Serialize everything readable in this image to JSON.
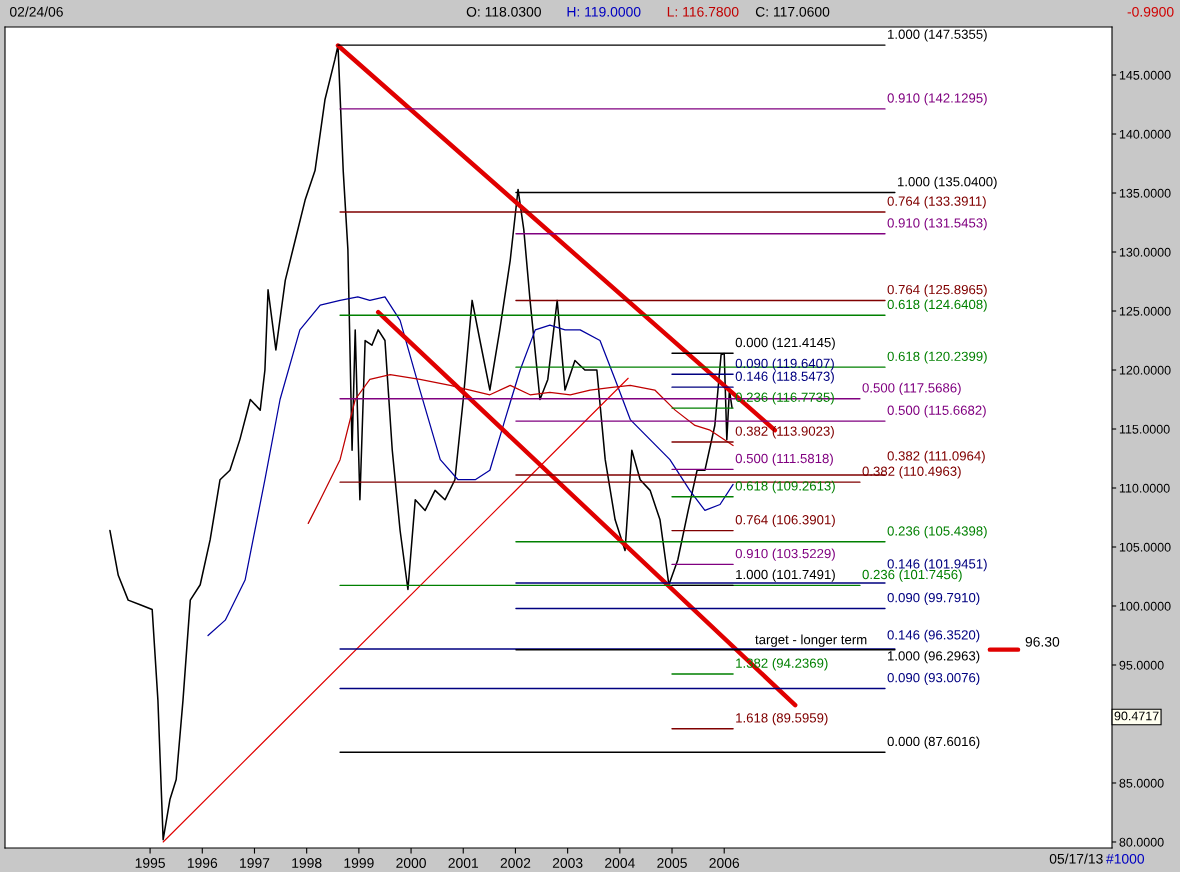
{
  "chart_data": {
    "type": "line",
    "xlim": [
      1992.22,
      2013.43
    ],
    "ylim": [
      79.49,
      149.07
    ],
    "xticks": [
      1995,
      1996,
      1997,
      1998,
      1999,
      2000,
      2001,
      2002,
      2003,
      2004,
      2005,
      2006
    ],
    "yticks": [
      {
        "value": 80,
        "label": "80.0000"
      },
      {
        "value": 85,
        "label": "85.0000"
      },
      {
        "value": 90,
        "label": null
      },
      {
        "value": 95,
        "label": "95.0000"
      },
      {
        "value": 100,
        "label": "100.0000"
      },
      {
        "value": 105,
        "label": "105.0000"
      },
      {
        "value": 110,
        "label": "110.0000"
      },
      {
        "value": 115,
        "label": "115.0000"
      },
      {
        "value": 120,
        "label": "120.0000"
      },
      {
        "value": 125,
        "label": "125.0000"
      },
      {
        "value": 130,
        "label": "130.0000"
      },
      {
        "value": 135,
        "label": "135.0000"
      },
      {
        "value": 140,
        "label": "140.0000"
      },
      {
        "value": 145,
        "label": "145.0000"
      }
    ],
    "grid": false,
    "series": [
      {
        "color": "#000000",
        "x": [
          1994.23,
          1994.39,
          1994.58,
          1994.81,
          1995.04,
          1995.15,
          1995.25,
          1995.38,
          1995.5,
          1995.63,
          1995.77,
          1995.96,
          1996.15,
          1996.34,
          1996.53,
          1996.72,
          1996.92,
          1997.11,
          1997.2,
          1997.26,
          1997.41,
          1997.59,
          1997.78,
          1997.97,
          1998.16,
          1998.35,
          1998.54,
          1998.6,
          1998.7,
          1998.79,
          1998.87,
          1998.93,
          1999.02,
          1999.12,
          1999.25,
          1999.37,
          1999.5,
          1999.64,
          1999.79,
          1999.94,
          2000.08,
          2000.27,
          2000.46,
          2000.65,
          2000.84,
          2001.0,
          2001.17,
          2001.32,
          2001.51,
          2001.7,
          2001.9,
          2002.05,
          2002.16,
          2002.28,
          2002.47,
          2002.62,
          2002.8,
          2002.95,
          2003.14,
          2003.33,
          2003.56,
          2003.72,
          2003.91,
          2004.1,
          2004.23,
          2004.39,
          2004.58,
          2004.77,
          2004.94,
          2005.11,
          2005.31,
          2005.48,
          2005.63,
          2005.82,
          2005.94,
          2006.0,
          2006.05,
          2006.1,
          2006.15
        ],
        "values": [
          106.4,
          102.6,
          100.5,
          100.1,
          99.7,
          92.0,
          80.2,
          83.6,
          85.3,
          92.0,
          100.5,
          101.8,
          105.6,
          110.7,
          111.5,
          114.1,
          117.5,
          116.6,
          120.0,
          126.8,
          121.7,
          127.6,
          131.0,
          134.4,
          136.9,
          142.9,
          146.3,
          147.5,
          136.9,
          130.2,
          113.2,
          123.4,
          109.0,
          122.5,
          122.1,
          123.4,
          122.5,
          113.2,
          106.4,
          101.4,
          109.0,
          108.1,
          109.8,
          109.0,
          110.7,
          117.5,
          125.9,
          122.5,
          118.3,
          123.4,
          129.3,
          135.3,
          131.9,
          125.9,
          117.5,
          119.2,
          125.9,
          118.3,
          120.8,
          120.0,
          120.0,
          112.4,
          107.3,
          104.7,
          113.2,
          110.7,
          109.8,
          107.3,
          101.8,
          103.9,
          108.1,
          111.5,
          111.5,
          115.3,
          121.3,
          121.4,
          114.1,
          118.3,
          116.8
        ]
      },
      {
        "color": "#0000a0",
        "x": [
          1996.11,
          1996.44,
          1996.82,
          1997.2,
          1997.49,
          1997.87,
          1998.26,
          1998.64,
          1998.98,
          1999.21,
          1999.5,
          1999.79,
          2000.17,
          2000.56,
          2000.9,
          2001.23,
          2001.51,
          2001.8,
          2002.09,
          2002.38,
          2002.66,
          2002.95,
          2003.24,
          2003.62,
          2003.91,
          2004.2,
          2004.58,
          2004.96,
          2005.34,
          2005.63,
          2005.92,
          2006.17
        ],
        "values": [
          97.5,
          98.8,
          102.2,
          110.7,
          117.5,
          123.4,
          125.5,
          125.9,
          126.2,
          125.9,
          126.2,
          124.2,
          118.3,
          112.4,
          110.7,
          110.7,
          111.5,
          115.8,
          120.0,
          123.4,
          123.8,
          123.4,
          123.4,
          122.5,
          119.2,
          115.8,
          114.1,
          112.4,
          109.8,
          108.1,
          108.6,
          110.3
        ]
      },
      {
        "color": "#c00000",
        "x": [
          1998.03,
          1998.26,
          1998.64,
          1998.93,
          1999.21,
          1999.6,
          2000.17,
          2000.75,
          2001.13,
          2001.51,
          2001.9,
          2002.28,
          2002.66,
          2003.05,
          2003.43,
          2003.81,
          2004.2,
          2004.67,
          2005.06,
          2005.44,
          2005.73,
          2006.17
        ],
        "values": [
          107.0,
          109.0,
          112.4,
          117.5,
          119.2,
          119.6,
          119.2,
          118.7,
          118.3,
          117.9,
          118.7,
          117.9,
          118.1,
          117.9,
          118.3,
          118.5,
          118.7,
          118.3,
          116.6,
          115.3,
          114.9,
          113.6
        ]
      },
      {
        "color": "#e00000",
        "x": [
          1995.25,
          2004.16
        ],
        "values": [
          80.0,
          119.3
        ]
      },
      {
        "color": "#e00000",
        "x": [
          1998.6,
          2006.97
        ],
        "values": [
          147.5,
          114.9
        ]
      },
      {
        "color": "#e00000",
        "x": [
          1999.37,
          2007.36
        ],
        "values": [
          124.9,
          91.6
        ]
      },
      {
        "color": "#e00000",
        "x": [
          2011.09,
          2011.63
        ],
        "values": [
          96.3,
          96.3
        ]
      },
      {
        "color": "#000000",
        "x": [
          1998.6,
          2009.08
        ],
        "values": [
          147.5355,
          147.5355
        ]
      },
      {
        "color": "#800080",
        "x": [
          1998.64,
          2009.08
        ],
        "values": [
          142.1295,
          142.1295
        ]
      },
      {
        "color": "#800000",
        "x": [
          1998.64,
          2009.08
        ],
        "values": [
          133.3911,
          133.3911
        ]
      },
      {
        "color": "#008000",
        "x": [
          1998.64,
          2009.08
        ],
        "values": [
          124.6408,
          124.6408
        ]
      },
      {
        "color": "#800080",
        "x": [
          1998.64,
          2008.6
        ],
        "values": [
          117.5686,
          117.5686
        ]
      },
      {
        "color": "#800000",
        "x": [
          1998.64,
          2008.6
        ],
        "values": [
          110.4963,
          110.4963
        ]
      },
      {
        "color": "#008000",
        "x": [
          1998.64,
          2008.6
        ],
        "values": [
          101.7456,
          101.7456
        ]
      },
      {
        "color": "#000080",
        "x": [
          1998.64,
          2009.27
        ],
        "values": [
          96.352,
          96.352
        ]
      },
      {
        "color": "#000080",
        "x": [
          1998.64,
          2009.08
        ],
        "values": [
          93.0076,
          93.0076
        ]
      },
      {
        "color": "#000000",
        "x": [
          1998.64,
          2009.08
        ],
        "values": [
          87.6016,
          87.6016
        ]
      },
      {
        "color": "#000000",
        "x": [
          2002.01,
          2009.27
        ],
        "values": [
          135.04,
          135.04
        ]
      },
      {
        "color": "#800080",
        "x": [
          2002.01,
          2009.08
        ],
        "values": [
          131.5453,
          131.5453
        ]
      },
      {
        "color": "#800000",
        "x": [
          2002.01,
          2009.08
        ],
        "values": [
          125.8965,
          125.8965
        ]
      },
      {
        "color": "#008000",
        "x": [
          2002.01,
          2009.08
        ],
        "values": [
          120.2399,
          120.2399
        ]
      },
      {
        "color": "#800080",
        "x": [
          2002.01,
          2009.08
        ],
        "values": [
          115.6682,
          115.6682
        ]
      },
      {
        "color": "#800000",
        "x": [
          2002.01,
          2009.08
        ],
        "values": [
          111.0964,
          111.0964
        ]
      },
      {
        "color": "#008000",
        "x": [
          2002.01,
          2009.08
        ],
        "values": [
          105.4398,
          105.4398
        ]
      },
      {
        "color": "#000080",
        "x": [
          2002.01,
          2009.08
        ],
        "values": [
          101.9451,
          101.9451
        ]
      },
      {
        "color": "#000080",
        "x": [
          2002.01,
          2009.08
        ],
        "values": [
          99.791,
          99.791
        ]
      },
      {
        "color": "#000000",
        "x": [
          2002.01,
          2009.27
        ],
        "values": [
          96.2963,
          96.2963
        ]
      },
      {
        "color": "#000000",
        "x": [
          2005.0,
          2006.17
        ],
        "values": [
          121.4145,
          121.4145
        ]
      },
      {
        "color": "#000080",
        "x": [
          2005.0,
          2006.17
        ],
        "values": [
          119.6407,
          119.6407
        ]
      },
      {
        "color": "#000080",
        "x": [
          2005.0,
          2006.17
        ],
        "values": [
          118.5473,
          118.5473
        ]
      },
      {
        "color": "#008000",
        "x": [
          2005.0,
          2006.17
        ],
        "values": [
          116.7735,
          116.7735
        ]
      },
      {
        "color": "#800000",
        "x": [
          2005.0,
          2006.17
        ],
        "values": [
          113.9023,
          113.9023
        ]
      },
      {
        "color": "#800080",
        "x": [
          2005.0,
          2006.17
        ],
        "values": [
          111.5818,
          111.5818
        ]
      },
      {
        "color": "#008000",
        "x": [
          2005.0,
          2006.17
        ],
        "values": [
          109.2613,
          109.2613
        ]
      },
      {
        "color": "#800000",
        "x": [
          2005.0,
          2006.17
        ],
        "values": [
          106.3901,
          106.3901
        ]
      },
      {
        "color": "#800080",
        "x": [
          2005.0,
          2006.17
        ],
        "values": [
          103.5229,
          103.5229
        ]
      },
      {
        "color": "#000000",
        "x": [
          2005.0,
          2006.17
        ],
        "values": [
          101.7491,
          101.7491
        ]
      },
      {
        "color": "#008000",
        "x": [
          2005.0,
          2006.17
        ],
        "values": [
          94.2369,
          94.2369
        ]
      },
      {
        "color": "#800000",
        "x": [
          2005.0,
          2006.17
        ],
        "values": [
          89.5959,
          89.5959
        ]
      }
    ],
    "annotations": [
      "02/24/06",
      "O: 118.0300",
      "H: 119.0000",
      "L: 116.7800",
      "C: 117.0600",
      "-0.9900",
      "05/17/13",
      "#1000",
      {
        "text": "1.000 (147.5355)",
        "x": 2009.12,
        "y": 147.5355
      },
      {
        "text": "0.910 (142.1295)",
        "x": 2009.12,
        "y": 142.1295
      },
      {
        "text": "0.764 (133.3911)",
        "x": 2009.12,
        "y": 133.3911
      },
      {
        "text": "0.618 (124.6408)",
        "x": 2009.12,
        "y": 124.6408
      },
      {
        "text": "0.500 (117.5686)",
        "x": 2008.64,
        "y": 117.5686
      },
      {
        "text": "0.382 (110.4963)",
        "x": 2008.64,
        "y": 110.4963
      },
      {
        "text": "0.236 (101.7456)",
        "x": 2008.64,
        "y": 101.7456
      },
      "0.146 (96.3520)",
      {
        "text": "0.090 (93.0076)",
        "x": 2009.12,
        "y": 93.0076
      },
      {
        "text": "0.000 (87.6016)",
        "x": 2009.12,
        "y": 87.6016
      },
      {
        "text": "1.000 (135.0400)",
        "x": 2009.31,
        "y": 135.04
      },
      {
        "text": "0.910 (131.5453)",
        "x": 2009.12,
        "y": 131.5453
      },
      {
        "text": "0.764 (125.8965)",
        "x": 2009.12,
        "y": 125.8965
      },
      {
        "text": "0.618 (120.2399)",
        "x": 2009.12,
        "y": 120.2399
      },
      {
        "text": "0.500 (115.6682)",
        "x": 2009.12,
        "y": 115.6682
      },
      {
        "text": "0.382 (111.0964)",
        "x": 2009.12,
        "y": 111.0964
      },
      {
        "text": "0.236 (105.4398)",
        "x": 2009.12,
        "y": 105.4398
      },
      {
        "text": "0.146 (101.9451)",
        "x": 2009.12,
        "y": 101.9451
      },
      {
        "text": "0.090 (99.7910)",
        "x": 2009.12,
        "y": 99.791
      },
      "1.000 (96.2963)",
      {
        "text": "0.000 (121.4145)",
        "x": 2006.21,
        "y": 121.4145
      },
      {
        "text": "0.090 (119.6407)",
        "x": 2006.21,
        "y": 119.6407
      },
      {
        "text": "0.146 (118.5473)",
        "x": 2006.21,
        "y": 118.5473
      },
      {
        "text": "0.236 (116.7735)",
        "x": 2006.21,
        "y": 116.7735
      },
      {
        "text": "0.382 (113.9023)",
        "x": 2006.21,
        "y": 113.9023
      },
      {
        "text": "0.500 (111.5818)",
        "x": 2006.21,
        "y": 111.5818
      },
      {
        "text": "0.618 (109.2613)",
        "x": 2006.21,
        "y": 109.2613
      },
      {
        "text": "0.764 (106.3901)",
        "x": 2006.21,
        "y": 106.3901
      },
      {
        "text": "0.910 (103.5229)",
        "x": 2006.21,
        "y": 103.5229
      },
      {
        "text": "1.000 (101.7491)",
        "x": 2006.21,
        "y": 101.7491
      },
      {
        "text": "1.382 (94.2369)",
        "x": 2006.21,
        "y": 94.2369
      },
      {
        "text": "1.618 (89.5959)",
        "x": 2006.21,
        "y": 89.5959
      },
      {
        "text": "target - longer term",
        "x": 2006.59,
        "y": 96.3
      },
      "96.30",
      "90.4717"
    ]
  }
}
